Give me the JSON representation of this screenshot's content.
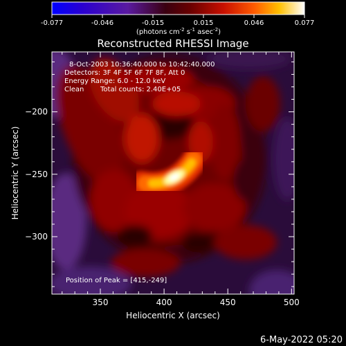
{
  "chart_data": {
    "type": "heatmap",
    "title": "Reconstructed RHESSI Image",
    "xlabel": "Heliocentric X (arcsec)",
    "ylabel": "Heliocentric Y (arcsec)",
    "xlim": [
      312,
      502
    ],
    "ylim": [
      -346,
      -152
    ],
    "x_ticks": [
      350,
      400,
      450,
      500
    ],
    "y_ticks": [
      -200,
      -250,
      -300
    ],
    "colorbar": {
      "ticks": [
        "-0.077",
        "-0.046",
        "-0.015",
        "0.015",
        "0.046",
        "0.077"
      ],
      "unit_text": "(photons cm",
      "unit_sup1": "-2",
      "unit_mid": " s",
      "unit_sup2": "-1",
      "unit_end": " asec",
      "unit_sup3": "-2",
      "unit_close": ")",
      "range": [
        -0.077,
        0.077
      ]
    },
    "annotations": {
      "time_range": "8-Oct-2003 10:36:40.000 to 10:42:40.000",
      "detectors": "Detectors: 3F 4F 5F 6F 7F 8F, Att 0",
      "energy": "Energy Range: 6.0 - 12.0 keV",
      "clean": "Clean",
      "total_counts": "Total counts: 2.40E+05",
      "peak": "Position of Peak = [415,-249]"
    },
    "peak": {
      "x": 415,
      "y": -249,
      "value": 0.077
    }
  },
  "footer": {
    "date": "6-May-2022 05:20"
  }
}
